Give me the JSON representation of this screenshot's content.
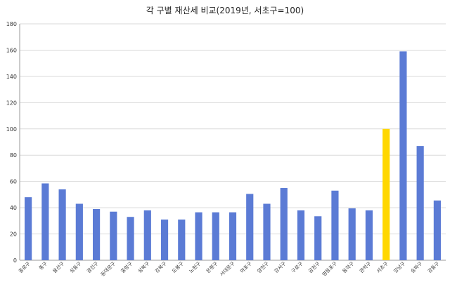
{
  "chart_data": {
    "type": "bar",
    "title": "각 구별 재산세 비교(2019년, 서초구=100)",
    "xlabel": "",
    "ylabel": "",
    "ylim": [
      0,
      180
    ],
    "yticks": [
      0,
      20,
      40,
      60,
      80,
      100,
      120,
      140,
      160,
      180
    ],
    "grid": true,
    "legend": "none",
    "bar_color": "#5b7bd5",
    "highlight_color": "#ffd700",
    "highlight_category": "서초구",
    "categories": [
      "종로구",
      "중구",
      "용산구",
      "성동구",
      "광진구",
      "동대문구",
      "중랑구",
      "성북구",
      "강북구",
      "도봉구",
      "노원구",
      "은평구",
      "서대문구",
      "마포구",
      "양천구",
      "강서구",
      "구로구",
      "금천구",
      "영등포구",
      "동작구",
      "관악구",
      "서초구",
      "강남구",
      "송파구",
      "강동구"
    ],
    "values": [
      48,
      58.5,
      54,
      43,
      39,
      37,
      33,
      38,
      31,
      31,
      36.5,
      36.5,
      36.5,
      50.5,
      43,
      55,
      38,
      33.5,
      53,
      39.5,
      38,
      100,
      159,
      87,
      45.5
    ]
  }
}
